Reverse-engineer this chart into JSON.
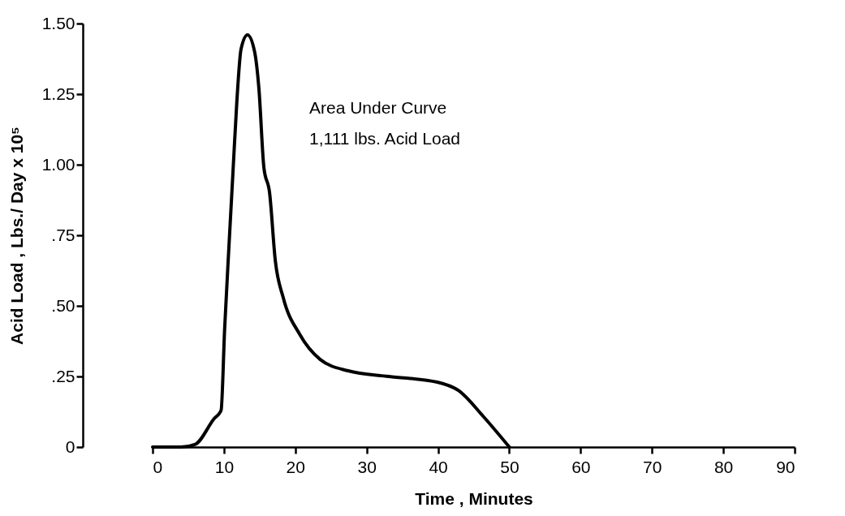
{
  "chart_data": {
    "type": "line",
    "xlabel": "Time , Minutes",
    "ylabel": "Acid Load , Lbs./ Day x 10⁵",
    "annotations": [
      "Area Under Curve",
      "1,111 lbs. Acid Load"
    ],
    "x": [
      0,
      4,
      6,
      8.6,
      9.6,
      10.1,
      10.7,
      11.3,
      11.8,
      12.4,
      13.3,
      14.3,
      14.9,
      15.6,
      16.4,
      17.2,
      18.3,
      20.6,
      23.5,
      27.4,
      33.1,
      39.9,
      42.9,
      46.3,
      50
    ],
    "series": [
      {
        "color": "#000000",
        "values": [
          0,
          0,
          0.01,
          0.1,
          0.13,
          0.42,
          0.71,
          0.99,
          1.22,
          1.41,
          1.46,
          1.4,
          1.27,
          0.99,
          0.9,
          0.66,
          0.53,
          0.4,
          0.31,
          0.27,
          0.25,
          0.23,
          0.2,
          0.11,
          0
        ]
      }
    ],
    "xlim": [
      0,
      90
    ],
    "xticks": [
      0,
      10,
      20,
      30,
      40,
      50,
      60,
      70,
      80,
      90
    ],
    "ylim": [
      0,
      1.5
    ],
    "yticks": [
      0,
      {
        "value": 0.25,
        "label": ".25"
      },
      {
        "value": 0.5,
        "label": ".50"
      },
      {
        "value": 0.75,
        "label": ".75"
      },
      {
        "value": 1,
        "label": "1.00"
      },
      {
        "value": 1.25,
        "label": "1.25"
      },
      {
        "value": 1.5,
        "label": "1.50"
      }
    ]
  }
}
